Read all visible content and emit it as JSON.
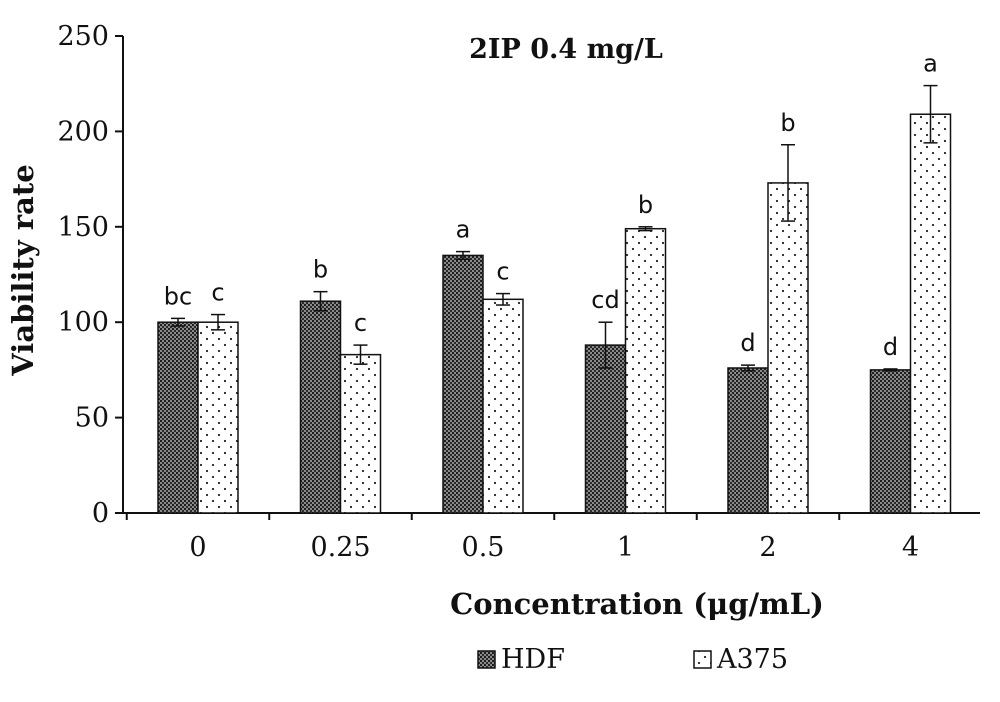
{
  "chart_data": {
    "type": "bar",
    "title": "2IP 0.4 mg/L",
    "xlabel": "Concentration (μg/mL)",
    "ylabel": "Viability rate",
    "categories": [
      "0",
      "0.25",
      "0.5",
      "1",
      "2",
      "4"
    ],
    "ylim": [
      0,
      250
    ],
    "yticks": [
      0,
      50,
      100,
      150,
      200,
      250
    ],
    "grid": false,
    "legend_position": "bottom",
    "series": [
      {
        "name": "HDF",
        "pattern": "dense-dots",
        "color": "#555555",
        "values": [
          100,
          111,
          135,
          88,
          76,
          75
        ],
        "errors": [
          2,
          5,
          2,
          12,
          1.5,
          0.5
        ],
        "labels": [
          "bc",
          "b",
          "a",
          "cd",
          "d",
          "d"
        ]
      },
      {
        "name": "A375",
        "pattern": "sparse-dots",
        "color": "#ffffff",
        "values": [
          100,
          83,
          112,
          149,
          173,
          209
        ],
        "errors": [
          4,
          5,
          3,
          1,
          20,
          15
        ],
        "labels": [
          "c",
          "c",
          "c",
          "b",
          "b",
          "a"
        ]
      }
    ]
  }
}
